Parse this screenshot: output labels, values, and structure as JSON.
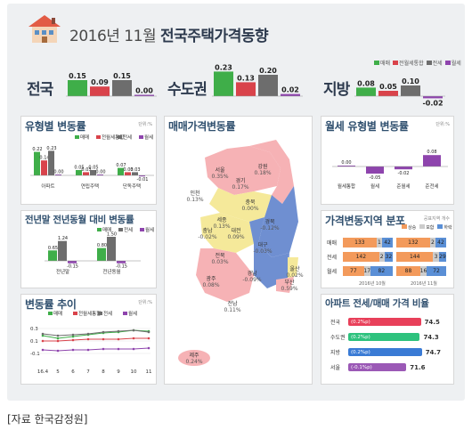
{
  "header": {
    "title_date": "2016년 11월",
    "title_main": "전국주택가격동향"
  },
  "legend": {
    "items": [
      {
        "label": "매매",
        "color": "#3fae49"
      },
      {
        "label": "전월세통합",
        "color": "#d9434b"
      },
      {
        "label": "전세",
        "color": "#6d6d6d"
      },
      {
        "label": "월세",
        "color": "#8e44ad"
      }
    ]
  },
  "regions": [
    {
      "name": "전국",
      "values": [
        0.15,
        0.09,
        0.15,
        0.0
      ],
      "labels": [
        "0.15",
        "0.09",
        "0.15",
        "0.00"
      ]
    },
    {
      "name": "수도권",
      "values": [
        0.23,
        0.13,
        0.2,
        0.02
      ],
      "labels": [
        "0.23",
        "0.13",
        "0.20",
        "0.02"
      ]
    },
    {
      "name": "지방",
      "values": [
        0.08,
        0.05,
        0.1,
        -0.02
      ],
      "labels": [
        "0.08",
        "0.05",
        "0.10",
        "-0.02"
      ]
    }
  ],
  "panels": {
    "type_change": {
      "title": "유형별 변동률",
      "unit": "단위:%",
      "legend": [
        "매매",
        "전월세통합",
        "전세",
        "월세"
      ],
      "categories": [
        "아파트",
        "연립주택",
        "단독주택"
      ],
      "series": [
        [
          0.22,
          0.05,
          0.07
        ],
        [
          0.14,
          0.03,
          0.03
        ],
        [
          0.23,
          0.05,
          0.03
        ],
        [
          0.0,
          0.0,
          -0.01
        ]
      ],
      "labels": [
        [
          "0.22",
          "0.05",
          "0.07"
        ],
        [
          "0.14",
          "0.03",
          "0.03"
        ],
        [
          "0.23",
          "0.05",
          "0.03"
        ],
        [
          "0.00",
          "0.00",
          "-0.01"
        ]
      ]
    },
    "yoy": {
      "title": "전년말 전년동월 대비 변동률",
      "unit": "단위:%",
      "legend": [
        "매매",
        "전세",
        "월세"
      ],
      "categories": [
        "전년말",
        "전년동월"
      ],
      "series": [
        [
          0.65,
          0.8
        ],
        [
          1.24,
          1.5
        ],
        [
          -0.15,
          -0.15
        ]
      ],
      "labels": [
        [
          "0.65",
          "0.80"
        ],
        [
          "1.24",
          "1.50"
        ],
        [
          "-0.15",
          "-0.15"
        ]
      ]
    },
    "trend": {
      "title": "변동률 추이",
      "unit": "단위:%",
      "legend": [
        "매매",
        "전월세통합",
        "전세",
        "월세"
      ],
      "months": [
        "16.4",
        "5",
        "6",
        "7",
        "8",
        "9",
        "10",
        "11"
      ],
      "yticks": [
        "0.3",
        "0.1",
        "-0.1"
      ]
    },
    "map": {
      "title": "매매가격변동률"
    },
    "rent_type": {
      "title": "월세 유형별 변동률",
      "unit": "단위:%",
      "categories": [
        "월세통합",
        "월세",
        "준월세",
        "준전세"
      ],
      "values": [
        0.0,
        -0.05,
        -0.02,
        0.08
      ],
      "labels": [
        "0.00",
        "-0.05",
        "-0.02",
        "0.08"
      ]
    },
    "distribution": {
      "title": "가격변동지역 분포",
      "unit": "공표지역 개수",
      "legend": [
        "상승",
        "보합",
        "하락"
      ],
      "rows": [
        {
          "label": "매매",
          "left": [
            "133",
            "1",
            "42"
          ],
          "right": [
            "132",
            "2",
            "42"
          ]
        },
        {
          "label": "전세",
          "left": [
            "142",
            "2",
            "32"
          ],
          "right": [
            "144",
            "3",
            "29"
          ]
        },
        {
          "label": "월세",
          "left": [
            "77",
            "17",
            "82"
          ],
          "right": [
            "88",
            "16",
            "72"
          ]
        }
      ],
      "periods": [
        "2016년 10월",
        "2016년 11월"
      ]
    },
    "ratio": {
      "title": "아파트 전세/매매 가격 비율",
      "rows": [
        {
          "label": "전국",
          "delta": "(0.2%p)",
          "value": "74.5"
        },
        {
          "label": "수도권",
          "delta": "(0.2%p)",
          "value": "74.3"
        },
        {
          "label": "지방",
          "delta": "(0.2%p)",
          "value": "74.7"
        },
        {
          "label": "서울",
          "delta": "(-0.1%p)",
          "value": "71.6"
        }
      ]
    }
  },
  "map_regions": [
    {
      "name": "서울",
      "value": "0.35%"
    },
    {
      "name": "인천",
      "value": "0.13%"
    },
    {
      "name": "경기",
      "value": "0.17%"
    },
    {
      "name": "강원",
      "value": "0.18%"
    },
    {
      "name": "충북",
      "value": "0.00%"
    },
    {
      "name": "세종",
      "value": "0.13%"
    },
    {
      "name": "충남",
      "value": "-0.02%"
    },
    {
      "name": "대전",
      "value": "0.09%"
    },
    {
      "name": "경북",
      "value": "-0.12%"
    },
    {
      "name": "대구",
      "value": "-0.03%"
    },
    {
      "name": "전북",
      "value": "0.03%"
    },
    {
      "name": "경남",
      "value": "-0.09%"
    },
    {
      "name": "울산",
      "value": "0.02%"
    },
    {
      "name": "부산",
      "value": "0.59%"
    },
    {
      "name": "광주",
      "value": "0.08%"
    },
    {
      "name": "전남",
      "value": "0.11%"
    },
    {
      "name": "제주",
      "value": "0.24%"
    }
  ],
  "source": "[자료 한국감정원]",
  "chart_data": [
    {
      "type": "bar",
      "title": "2016년 11월 전국주택가격동향",
      "categories": [
        "전국",
        "수도권",
        "지방"
      ],
      "series": [
        {
          "name": "매매",
          "values": [
            0.15,
            0.23,
            0.08
          ]
        },
        {
          "name": "전월세통합",
          "values": [
            0.09,
            0.13,
            0.05
          ]
        },
        {
          "name": "전세",
          "values": [
            0.15,
            0.2,
            0.1
          ]
        },
        {
          "name": "월세",
          "values": [
            0.0,
            0.02,
            -0.02
          ]
        }
      ]
    },
    {
      "type": "bar",
      "title": "유형별 변동률",
      "categories": [
        "아파트",
        "연립주택",
        "단독주택"
      ],
      "series": [
        {
          "name": "매매",
          "values": [
            0.22,
            0.05,
            0.07
          ]
        },
        {
          "name": "전월세통합",
          "values": [
            0.14,
            0.03,
            0.03
          ]
        },
        {
          "name": "전세",
          "values": [
            0.23,
            0.05,
            0.03
          ]
        },
        {
          "name": "월세",
          "values": [
            0.0,
            0.0,
            -0.01
          ]
        }
      ]
    },
    {
      "type": "bar",
      "title": "전년말 전년동월 대비 변동률",
      "categories": [
        "전년말",
        "전년동월"
      ],
      "series": [
        {
          "name": "매매",
          "values": [
            0.65,
            0.8
          ]
        },
        {
          "name": "전세",
          "values": [
            1.24,
            1.5
          ]
        },
        {
          "name": "월세",
          "values": [
            -0.15,
            -0.15
          ]
        }
      ]
    },
    {
      "type": "bar",
      "title": "월세 유형별 변동률",
      "categories": [
        "월세통합",
        "월세",
        "준월세",
        "준전세"
      ],
      "values": [
        0.0,
        -0.05,
        -0.02,
        0.08
      ]
    },
    {
      "type": "bar",
      "title": "아파트 전세/매매 가격 비율",
      "categories": [
        "전국",
        "수도권",
        "지방",
        "서울"
      ],
      "values": [
        74.5,
        74.3,
        74.7,
        71.6
      ]
    }
  ]
}
